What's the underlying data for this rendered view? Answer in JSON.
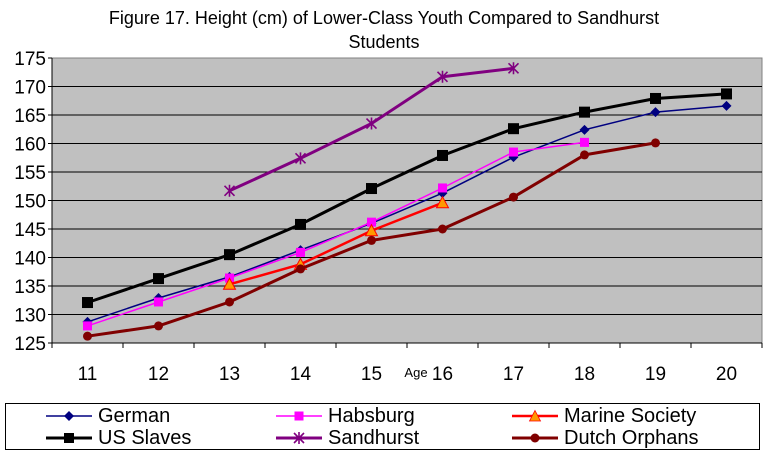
{
  "chart_data": {
    "type": "line",
    "title_line1": "Figure 17. Height (cm) of Lower-Class Youth Compared to Sandhurst",
    "title_line2": "Students",
    "xlabel": "Age",
    "ylabel": "",
    "x": [
      11,
      12,
      13,
      14,
      15,
      16,
      17,
      18,
      19,
      20
    ],
    "xlim": [
      11,
      20
    ],
    "ylim": [
      125,
      175
    ],
    "yticks": [
      125,
      130,
      135,
      140,
      145,
      150,
      155,
      160,
      165,
      170,
      175
    ],
    "grid": true,
    "legend_position": "bottom",
    "plot_background": "#c0c0c0",
    "series": [
      {
        "name": "German",
        "color": "#000080",
        "marker": "diamond",
        "stroke_width": 1.5,
        "points": [
          [
            11,
            128.7
          ],
          [
            12,
            132.9
          ],
          [
            13,
            136.6
          ],
          [
            14,
            141.3
          ],
          [
            15,
            146.0
          ],
          [
            16,
            151.3
          ],
          [
            17,
            157.6
          ],
          [
            18,
            162.4
          ],
          [
            19,
            165.5
          ],
          [
            20,
            166.6
          ]
        ]
      },
      {
        "name": "Habsburg",
        "color": "#ff00ff",
        "marker": "square",
        "stroke_width": 1.5,
        "points": [
          [
            11,
            128.0
          ],
          [
            12,
            132.2
          ],
          [
            13,
            136.4
          ],
          [
            14,
            140.9
          ],
          [
            15,
            146.2
          ],
          [
            16,
            152.2
          ],
          [
            17,
            158.5
          ],
          [
            18,
            160.2
          ]
        ]
      },
      {
        "name": "Marine Society",
        "color": "#ff0000",
        "marker": "triangle",
        "stroke_width": 2.5,
        "points": [
          [
            13,
            135.3
          ],
          [
            14,
            138.8
          ],
          [
            15,
            144.7
          ],
          [
            16,
            149.6
          ]
        ]
      },
      {
        "name": "US Slaves",
        "color": "#000000",
        "marker": "square",
        "stroke_width": 3,
        "points": [
          [
            11,
            132.1
          ],
          [
            12,
            136.3
          ],
          [
            13,
            140.5
          ],
          [
            14,
            145.8
          ],
          [
            15,
            152.1
          ],
          [
            16,
            157.9
          ],
          [
            17,
            162.6
          ],
          [
            18,
            165.5
          ],
          [
            19,
            167.9
          ],
          [
            20,
            168.7
          ]
        ]
      },
      {
        "name": "Sandhurst",
        "color": "#800080",
        "marker": "star",
        "stroke_width": 3,
        "points": [
          [
            13,
            151.7
          ],
          [
            14,
            157.4
          ],
          [
            15,
            163.5
          ],
          [
            16,
            171.7
          ],
          [
            17,
            173.2
          ]
        ]
      },
      {
        "name": "Dutch Orphans",
        "color": "#800000",
        "marker": "circle",
        "stroke_width": 3,
        "points": [
          [
            11,
            126.2
          ],
          [
            12,
            128.0
          ],
          [
            13,
            132.2
          ],
          [
            14,
            138.0
          ],
          [
            15,
            143.0
          ],
          [
            16,
            145.0
          ],
          [
            17,
            150.6
          ],
          [
            18,
            158.0
          ],
          [
            19,
            160.1
          ]
        ]
      }
    ]
  }
}
